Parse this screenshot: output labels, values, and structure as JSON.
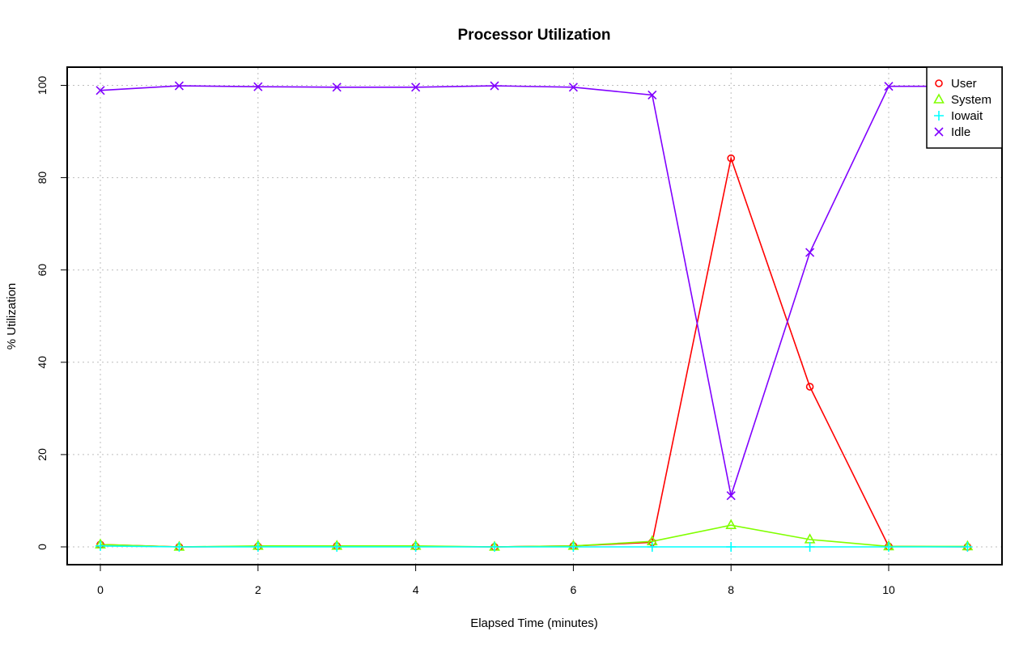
{
  "chart_data": {
    "type": "line",
    "title": "Processor Utilization",
    "xlabel": "Elapsed Time (minutes)",
    "ylabel": "% Utilization",
    "xlim": [
      0,
      11
    ],
    "ylim": [
      0,
      100
    ],
    "x_ticks": [
      0,
      2,
      4,
      6,
      8,
      10
    ],
    "y_ticks": [
      0,
      20,
      40,
      60,
      80,
      100
    ],
    "grid": true,
    "legend_position": "top-right",
    "x": [
      0,
      1,
      2,
      3,
      4,
      5,
      6,
      7,
      8,
      9,
      10,
      11
    ],
    "series": [
      {
        "name": "User",
        "color": "#ff0000",
        "marker": "circle",
        "values": [
          0.5,
          0.0,
          0.1,
          0.2,
          0.1,
          0.0,
          0.2,
          1.0,
          84.2,
          34.7,
          0.1,
          0.0
        ]
      },
      {
        "name": "System",
        "color": "#80ff00",
        "marker": "triangle",
        "values": [
          0.5,
          0.0,
          0.2,
          0.2,
          0.2,
          0.0,
          0.2,
          1.2,
          4.7,
          1.6,
          0.1,
          0.1
        ]
      },
      {
        "name": "Iowait",
        "color": "#00ffff",
        "marker": "plus",
        "values": [
          0.2,
          0.0,
          0.0,
          0.0,
          0.0,
          0.0,
          0.0,
          0.0,
          0.0,
          0.0,
          0.0,
          0.0
        ]
      },
      {
        "name": "Idle",
        "color": "#8000ff",
        "marker": "cross",
        "values": [
          98.9,
          99.9,
          99.7,
          99.6,
          99.6,
          99.9,
          99.6,
          97.9,
          11.1,
          63.8,
          99.8,
          99.8
        ]
      }
    ]
  }
}
